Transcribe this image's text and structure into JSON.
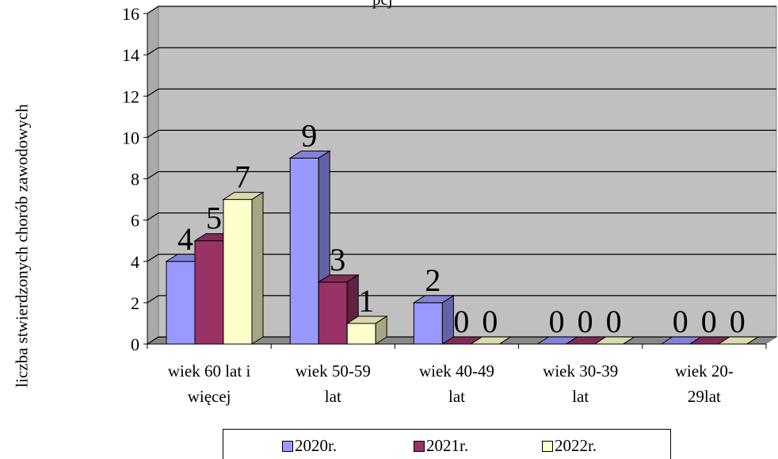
{
  "chart_data": {
    "type": "bar",
    "title": "",
    "title_partial_visible": "pcj",
    "xlabel": "",
    "ylabel": "liczba stwierdzonych chorób zawodowych",
    "ylim": [
      0,
      16
    ],
    "yticks": [
      0,
      2,
      4,
      6,
      8,
      10,
      12,
      14,
      16
    ],
    "grid": true,
    "legend_position": "bottom",
    "categories": [
      [
        "wiek 60 lat i",
        "więcej"
      ],
      [
        "wiek 50-59",
        "lat"
      ],
      [
        "wiek 40-49",
        "lat"
      ],
      [
        "wiek 30-39",
        "lat"
      ],
      [
        "wiek 20-",
        "29lat"
      ]
    ],
    "series": [
      {
        "name": "2020r.",
        "values": [
          4,
          9,
          2,
          0,
          0
        ],
        "color": "#9999ff"
      },
      {
        "name": "2021r.",
        "values": [
          5,
          3,
          0,
          0,
          0
        ],
        "color": "#993366"
      },
      {
        "name": "2022r.",
        "values": [
          7,
          1,
          0,
          0,
          0
        ],
        "color": "#ffffcc"
      }
    ]
  }
}
